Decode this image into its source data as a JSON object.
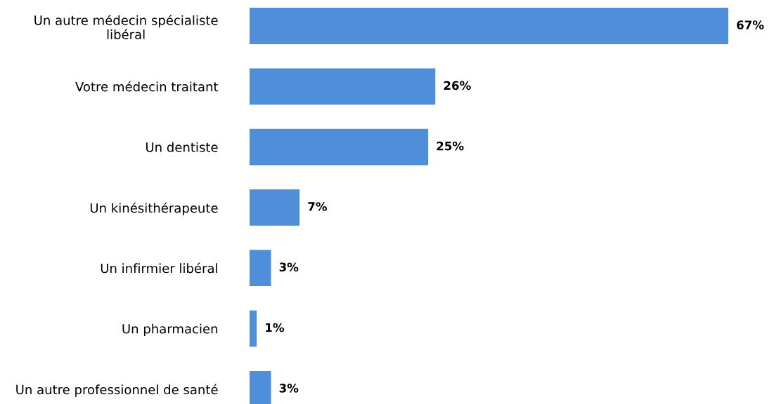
{
  "chart_data": {
    "type": "bar",
    "orientation": "horizontal",
    "categories": [
      "Un autre médecin spécialiste\nlibéral",
      "Votre médecin traitant",
      "Un dentiste",
      "Un kinésithérapeute",
      "Un infirmier libéral",
      "Un pharmacien",
      "Un autre professionnel de santé"
    ],
    "values": [
      67,
      26,
      25,
      7,
      3,
      1,
      3
    ],
    "value_labels": [
      "67%",
      "26%",
      "25%",
      "7%",
      "3%",
      "1%",
      "3%"
    ],
    "color": "#4f8ed9",
    "legend": false,
    "grid": false
  }
}
